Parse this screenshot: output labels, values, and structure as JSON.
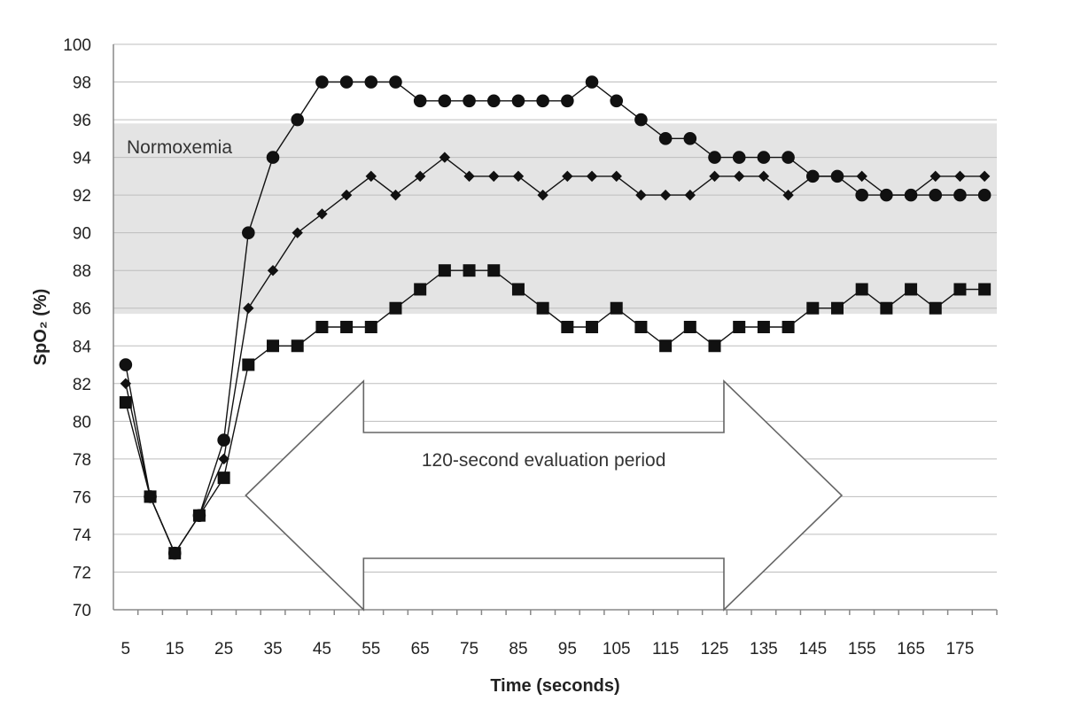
{
  "chart_data": {
    "type": "line",
    "xlabel": "Time (seconds)",
    "ylabel": "SpO₂ (%)",
    "ylim": [
      70,
      100
    ],
    "yticks": [
      "70",
      "72",
      "74",
      "76",
      "78",
      "80",
      "82",
      "84",
      "86",
      "88",
      "90",
      "92",
      "94",
      "96",
      "98",
      "100"
    ],
    "xticks": [
      "5",
      "15",
      "25",
      "35",
      "45",
      "55",
      "65",
      "75",
      "85",
      "95",
      "105",
      "115",
      "125",
      "135",
      "145",
      "155",
      "165",
      "175"
    ],
    "grid": true,
    "x": [
      5,
      10,
      15,
      20,
      25,
      30,
      35,
      40,
      45,
      50,
      55,
      60,
      65,
      70,
      75,
      80,
      85,
      90,
      95,
      100,
      105,
      110,
      115,
      120,
      125,
      130,
      135,
      140,
      145,
      150,
      155,
      160,
      165,
      170,
      175,
      180
    ],
    "band": {
      "label": "Normoxemia",
      "y_range": [
        85.7,
        95.8
      ],
      "color": "#e4e4e4"
    },
    "annotation": {
      "label": "120-second evaluation period",
      "x_range": [
        30,
        150
      ]
    },
    "series": [
      {
        "marker": "circle",
        "values": [
          83,
          76,
          73,
          75,
          79,
          90,
          94,
          96,
          98,
          98,
          98,
          98,
          97,
          97,
          97,
          97,
          97,
          97,
          97,
          98,
          97,
          96,
          95,
          95,
          94,
          94,
          94,
          94,
          93,
          93,
          92,
          92,
          92,
          92,
          92,
          92
        ]
      },
      {
        "marker": "diamond",
        "values": [
          82,
          76,
          73,
          75,
          78,
          86,
          88,
          90,
          91,
          92,
          93,
          92,
          93,
          94,
          93,
          93,
          93,
          92,
          93,
          93,
          93,
          92,
          92,
          92,
          93,
          93,
          93,
          92,
          93,
          93,
          93,
          92,
          92,
          93,
          93,
          93
        ]
      },
      {
        "marker": "square",
        "values": [
          81,
          76,
          73,
          75,
          77,
          83,
          84,
          84,
          85,
          85,
          85,
          86,
          87,
          88,
          88,
          88,
          87,
          86,
          85,
          85,
          86,
          85,
          84,
          85,
          84,
          85,
          85,
          85,
          86,
          86,
          87,
          86,
          87,
          86,
          87,
          87
        ]
      }
    ]
  }
}
